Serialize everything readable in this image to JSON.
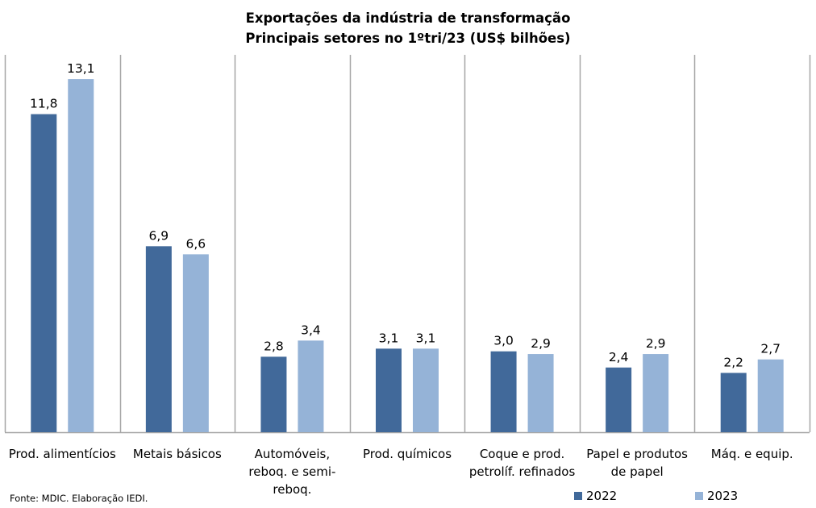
{
  "chart_data": {
    "type": "bar",
    "title": "Exportações da indústria de transformação",
    "subtitle": "Principais setores no 1ºtri/23 (US$ bilhões)",
    "xlabel": "",
    "ylabel": "",
    "ylim": [
      0,
      14
    ],
    "grid": false,
    "categories": [
      [
        "Prod. alimentícios"
      ],
      [
        "Metais básicos"
      ],
      [
        "Automóveis,",
        "reboq. e semi-",
        "reboq."
      ],
      [
        "Prod. químicos"
      ],
      [
        "Coque e prod.",
        "petrolíf. refinados"
      ],
      [
        "Papel e produtos",
        "de papel"
      ],
      [
        "Máq. e equip."
      ]
    ],
    "series": [
      {
        "name": "2022",
        "color": "#41699A",
        "values": [
          11.8,
          6.9,
          2.8,
          3.1,
          3.0,
          2.4,
          2.2
        ],
        "labels": [
          "11,8",
          "6,9",
          "2,8",
          "3,1",
          "3,0",
          "2,4",
          "2,2"
        ]
      },
      {
        "name": "2023",
        "color": "#95B3D7",
        "values": [
          13.1,
          6.6,
          3.4,
          3.1,
          2.9,
          2.9,
          2.7
        ],
        "labels": [
          "13,1",
          "6,6",
          "3,4",
          "3,1",
          "2,9",
          "2,9",
          "2,7"
        ]
      }
    ],
    "legend_position": "bottom-right",
    "source": "Fonte: MDIC. Elaboração IEDI."
  }
}
